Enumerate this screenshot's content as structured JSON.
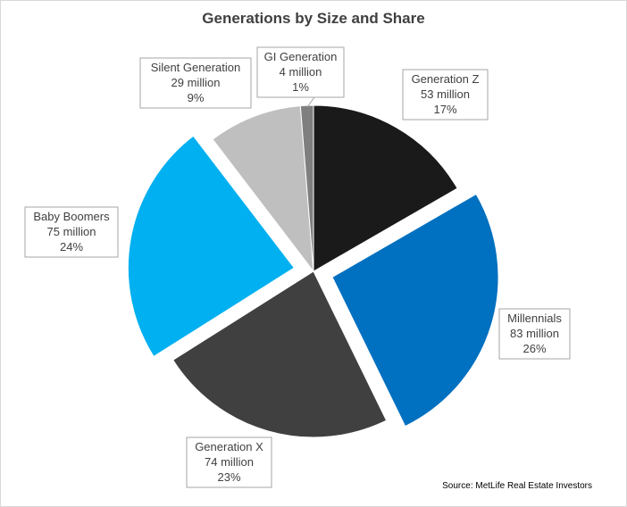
{
  "chart_data": {
    "type": "pie",
    "title": "Generations by Size and Share",
    "source": "Source: MetLife Real Estate Investors",
    "slices": [
      {
        "name": "Generation Z",
        "value": 53,
        "value_label": "53 million",
        "pct_label": "17%",
        "percent": 17,
        "color": "#1a1a1a",
        "exploded": false
      },
      {
        "name": "Millennials",
        "value": 83,
        "value_label": "83 million",
        "pct_label": "26%",
        "percent": 26,
        "color": "#0070c0",
        "exploded": true
      },
      {
        "name": "Generation X",
        "value": 74,
        "value_label": "74 million",
        "pct_label": "23%",
        "percent": 23,
        "color": "#404040",
        "exploded": false
      },
      {
        "name": "Baby Boomers",
        "value": 75,
        "value_label": "75 million",
        "pct_label": "24%",
        "percent": 24,
        "color": "#00b0f0",
        "exploded": true
      },
      {
        "name": "Silent Generation",
        "value": 29,
        "value_label": "29 million",
        "pct_label": "9%",
        "percent": 9,
        "color": "#bfbfbf",
        "exploded": false
      },
      {
        "name": "GI Generation",
        "value": 4,
        "value_label": "4 million",
        "pct_label": "1%",
        "percent": 1,
        "color": "#7f7f7f",
        "exploded": false
      }
    ]
  }
}
